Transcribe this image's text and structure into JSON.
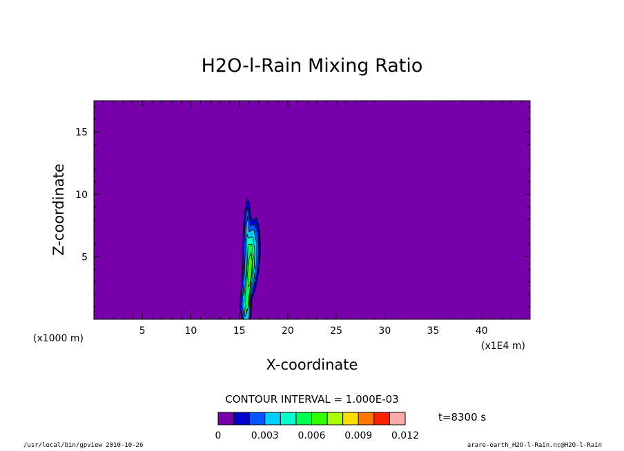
{
  "chart_data": {
    "type": "heatmap",
    "title": "H2O-l-Rain Mixing Ratio",
    "xlabel": "X-coordinate",
    "ylabel": "Z-coordinate",
    "x_unit": "(x1E4 m)",
    "y_unit": "(x1000 m)",
    "xlim": [
      0,
      45
    ],
    "ylim": [
      0,
      17.5
    ],
    "x_ticks": [
      5,
      10,
      15,
      20,
      25,
      30,
      35,
      40
    ],
    "y_ticks": [
      5,
      10,
      15
    ],
    "x_tick_labels": [
      "5",
      "10",
      "15",
      "20",
      "25",
      "30",
      "35",
      "40"
    ],
    "y_tick_labels": [
      "5",
      "10",
      "15"
    ],
    "contour_interval_label": "CONTOUR INTERVAL = 1.000E-03",
    "contour_interval": 0.001,
    "time_label": "t=8300 s",
    "colorbar": {
      "colors": [
        "#7700aa",
        "#0000cc",
        "#0055ff",
        "#00ccff",
        "#00ffcc",
        "#00ff55",
        "#33ff00",
        "#aaff00",
        "#ffdd00",
        "#ff7700",
        "#ff2200",
        "#ffaaaa"
      ],
      "tick_values": [
        0,
        0.003,
        0.006,
        0.009,
        0.012
      ],
      "tick_labels": [
        "0",
        "0.003",
        "0.006",
        "0.009",
        "0.012"
      ]
    },
    "background_color": "#7700aa",
    "features": [
      {
        "level": 0.001,
        "color": "#0000cc",
        "points": [
          [
            15.3,
            0
          ],
          [
            15.0,
            1.0
          ],
          [
            15.2,
            2.5
          ],
          [
            15.3,
            4.5
          ],
          [
            15.35,
            6.5
          ],
          [
            15.5,
            8.5
          ],
          [
            15.8,
            9.7
          ],
          [
            16.05,
            9.3
          ],
          [
            16.2,
            8.2
          ],
          [
            16.4,
            7.9
          ],
          [
            16.8,
            8.2
          ],
          [
            17.1,
            7.2
          ],
          [
            17.2,
            5.5
          ],
          [
            17.0,
            3.8
          ],
          [
            16.7,
            2.5
          ],
          [
            16.3,
            1.6
          ],
          [
            16.2,
            0
          ]
        ]
      },
      {
        "level": 0.002,
        "color": "#0055ff",
        "points": [
          [
            15.4,
            0
          ],
          [
            15.15,
            1.2
          ],
          [
            15.35,
            2.8
          ],
          [
            15.45,
            4.8
          ],
          [
            15.55,
            7.0
          ],
          [
            15.75,
            9.0
          ],
          [
            15.95,
            8.5
          ],
          [
            16.1,
            7.5
          ],
          [
            16.6,
            7.6
          ],
          [
            16.95,
            6.8
          ],
          [
            17.0,
            5.2
          ],
          [
            16.8,
            3.6
          ],
          [
            16.4,
            2.4
          ],
          [
            16.15,
            1.5
          ],
          [
            16.1,
            0
          ]
        ]
      },
      {
        "level": 0.003,
        "color": "#00ccff",
        "points": [
          [
            15.5,
            0
          ],
          [
            15.3,
            1.3
          ],
          [
            15.5,
            3.0
          ],
          [
            15.6,
            5.0
          ],
          [
            15.7,
            7.2
          ],
          [
            15.85,
            8.2
          ],
          [
            16.0,
            7.0
          ],
          [
            16.5,
            7.2
          ],
          [
            16.8,
            6.0
          ],
          [
            16.75,
            4.4
          ],
          [
            16.5,
            3.2
          ],
          [
            16.2,
            2.2
          ],
          [
            16.05,
            1.2
          ],
          [
            16.0,
            0
          ]
        ]
      },
      {
        "level": 0.004,
        "color": "#00ffcc",
        "points": [
          [
            15.6,
            0.2
          ],
          [
            15.45,
            1.4
          ],
          [
            15.65,
            3.2
          ],
          [
            15.75,
            5.0
          ],
          [
            15.8,
            6.8
          ],
          [
            15.95,
            6.5
          ],
          [
            16.4,
            6.6
          ],
          [
            16.6,
            5.5
          ],
          [
            16.55,
            4.2
          ],
          [
            16.3,
            3.0
          ],
          [
            16.1,
            2.0
          ],
          [
            15.95,
            1.0
          ]
        ]
      },
      {
        "level": 0.005,
        "color": "#00ff55",
        "points": [
          [
            15.7,
            0.5
          ],
          [
            15.6,
            1.6
          ],
          [
            15.75,
            3.4
          ],
          [
            15.85,
            5.0
          ],
          [
            15.9,
            6.0
          ],
          [
            16.3,
            6.0
          ],
          [
            16.45,
            5.0
          ],
          [
            16.35,
            3.8
          ],
          [
            16.15,
            2.8
          ],
          [
            16.0,
            1.8
          ],
          [
            15.9,
            0.9
          ]
        ]
      },
      {
        "level": 0.006,
        "color": "#33ff00",
        "points": [
          [
            15.95,
            2.6
          ],
          [
            15.85,
            3.6
          ],
          [
            16.0,
            4.8
          ],
          [
            16.2,
            5.4
          ],
          [
            16.35,
            4.6
          ],
          [
            16.25,
            3.6
          ],
          [
            16.1,
            2.8
          ]
        ]
      }
    ]
  },
  "footer": {
    "left": "/usr/local/bin/gpview  2010-10-26",
    "right": "arare-earth_H2O-l-Rain.nc@H2O-l-Rain"
  }
}
